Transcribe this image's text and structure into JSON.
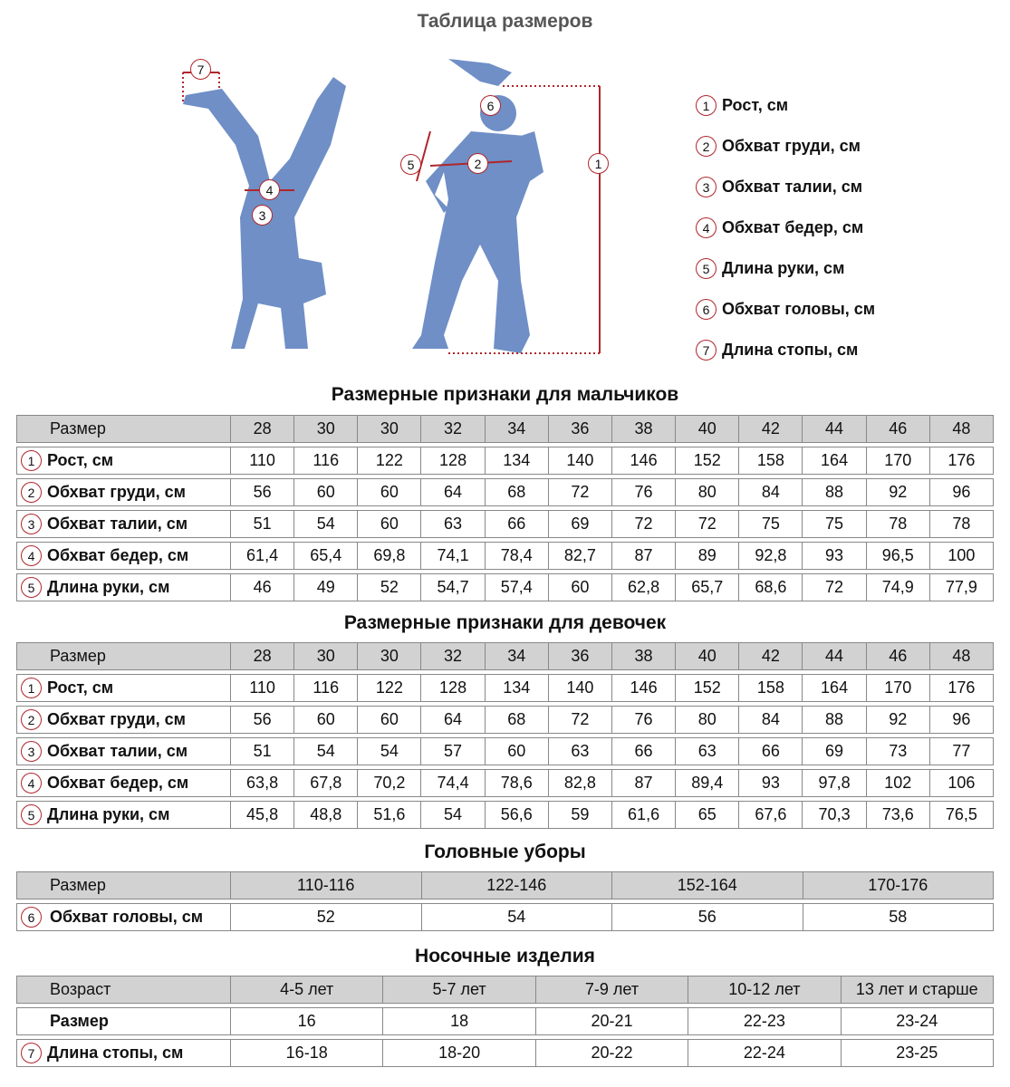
{
  "title": "Таблица размеров",
  "colors": {
    "silhouette": "#6f8fc6",
    "marker": "#b0262b",
    "header_bg": "#d2d2d2"
  },
  "legend": [
    {
      "n": "1",
      "label": "Рост, см"
    },
    {
      "n": "2",
      "label": "Обхват груди, см"
    },
    {
      "n": "3",
      "label": "Обхват талии, см"
    },
    {
      "n": "4",
      "label": "Обхват бедер, см"
    },
    {
      "n": "5",
      "label": "Длина руки, см"
    },
    {
      "n": "6",
      "label": "Обхват головы, см"
    },
    {
      "n": "7",
      "label": "Длина стопы, см"
    }
  ],
  "boys": {
    "title": "Размерные признаки для мальчиков",
    "header": [
      "Размер",
      "28",
      "30",
      "30",
      "32",
      "34",
      "36",
      "38",
      "40",
      "42",
      "44",
      "46",
      "48"
    ],
    "rows": [
      {
        "n": "1",
        "label": "Рост, см",
        "values": [
          "110",
          "116",
          "122",
          "128",
          "134",
          "140",
          "146",
          "152",
          "158",
          "164",
          "170",
          "176"
        ]
      },
      {
        "n": "2",
        "label": "Обхват груди, см",
        "values": [
          "56",
          "60",
          "60",
          "64",
          "68",
          "72",
          "76",
          "80",
          "84",
          "88",
          "92",
          "96"
        ]
      },
      {
        "n": "3",
        "label": "Обхват талии, см",
        "values": [
          "51",
          "54",
          "60",
          "63",
          "66",
          "69",
          "72",
          "72",
          "75",
          "75",
          "78",
          "78"
        ]
      },
      {
        "n": "4",
        "label": "Обхват бедер, см",
        "values": [
          "61,4",
          "65,4",
          "69,8",
          "74,1",
          "78,4",
          "82,7",
          "87",
          "89",
          "92,8",
          "93",
          "96,5",
          "100"
        ]
      },
      {
        "n": "5",
        "label": "Длина руки, см",
        "values": [
          "46",
          "49",
          "52",
          "54,7",
          "57,4",
          "60",
          "62,8",
          "65,7",
          "68,6",
          "72",
          "74,9",
          "77,9"
        ]
      }
    ]
  },
  "girls": {
    "title": "Размерные признаки для девочек",
    "header": [
      "Размер",
      "28",
      "30",
      "30",
      "32",
      "34",
      "36",
      "38",
      "40",
      "42",
      "44",
      "46",
      "48"
    ],
    "rows": [
      {
        "n": "1",
        "label": "Рост, см",
        "values": [
          "110",
          "116",
          "122",
          "128",
          "134",
          "140",
          "146",
          "152",
          "158",
          "164",
          "170",
          "176"
        ]
      },
      {
        "n": "2",
        "label": "Обхват груди, см",
        "values": [
          "56",
          "60",
          "60",
          "64",
          "68",
          "72",
          "76",
          "80",
          "84",
          "88",
          "92",
          "96"
        ]
      },
      {
        "n": "3",
        "label": "Обхват талии, см",
        "values": [
          "51",
          "54",
          "54",
          "57",
          "60",
          "63",
          "66",
          "63",
          "66",
          "69",
          "73",
          "77"
        ]
      },
      {
        "n": "4",
        "label": "Обхват бедер, см",
        "values": [
          "63,8",
          "67,8",
          "70,2",
          "74,4",
          "78,6",
          "82,8",
          "87",
          "89,4",
          "93",
          "97,8",
          "102",
          "106"
        ]
      },
      {
        "n": "5",
        "label": "Длина руки, см",
        "values": [
          "45,8",
          "48,8",
          "51,6",
          "54",
          "56,6",
          "59",
          "61,6",
          "65",
          "67,6",
          "70,3",
          "73,6",
          "76,5"
        ]
      }
    ]
  },
  "hats": {
    "title": "Головные уборы",
    "header": [
      "Размер",
      "110-116",
      "122-146",
      "152-164",
      "170-176"
    ],
    "rows": [
      {
        "n": "6",
        "label": "Обхват головы, см",
        "values": [
          "52",
          "54",
          "56",
          "58"
        ]
      }
    ]
  },
  "socks": {
    "title": "Носочные изделия",
    "header": [
      "Возраст",
      "4-5 лет",
      "5-7 лет",
      "7-9 лет",
      "10-12 лет",
      "13 лет и старше"
    ],
    "rows": [
      {
        "n": "",
        "label": "Размер",
        "values": [
          "16",
          "18",
          "20-21",
          "22-23",
          "23-24"
        ]
      },
      {
        "n": "7",
        "label": "Длина стопы, см",
        "values": [
          "16-18",
          "18-20",
          "20-22",
          "22-24",
          "23-25"
        ]
      }
    ]
  }
}
